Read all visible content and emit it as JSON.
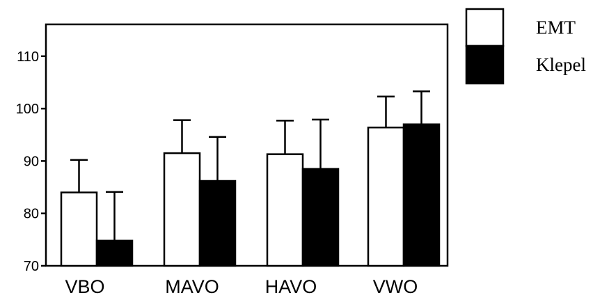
{
  "chart_data": {
    "type": "bar",
    "categories": [
      "VBO",
      "MAVO",
      "HAVO",
      "VWO"
    ],
    "series": [
      {
        "name": "EMT",
        "values": [
          84.0,
          91.5,
          91.3,
          96.4
        ],
        "errors": [
          6.2,
          6.3,
          6.4,
          5.9
        ],
        "color": "#ffffff"
      },
      {
        "name": "Klepel",
        "values": [
          74.8,
          86.2,
          88.5,
          97.0
        ],
        "errors": [
          9.3,
          8.4,
          9.4,
          6.3
        ],
        "color": "#000000"
      }
    ],
    "yticks": [
      70,
      80,
      90,
      100,
      110
    ],
    "ylim": [
      70,
      115
    ],
    "legend_position": "top-right-outside",
    "grid": false
  }
}
